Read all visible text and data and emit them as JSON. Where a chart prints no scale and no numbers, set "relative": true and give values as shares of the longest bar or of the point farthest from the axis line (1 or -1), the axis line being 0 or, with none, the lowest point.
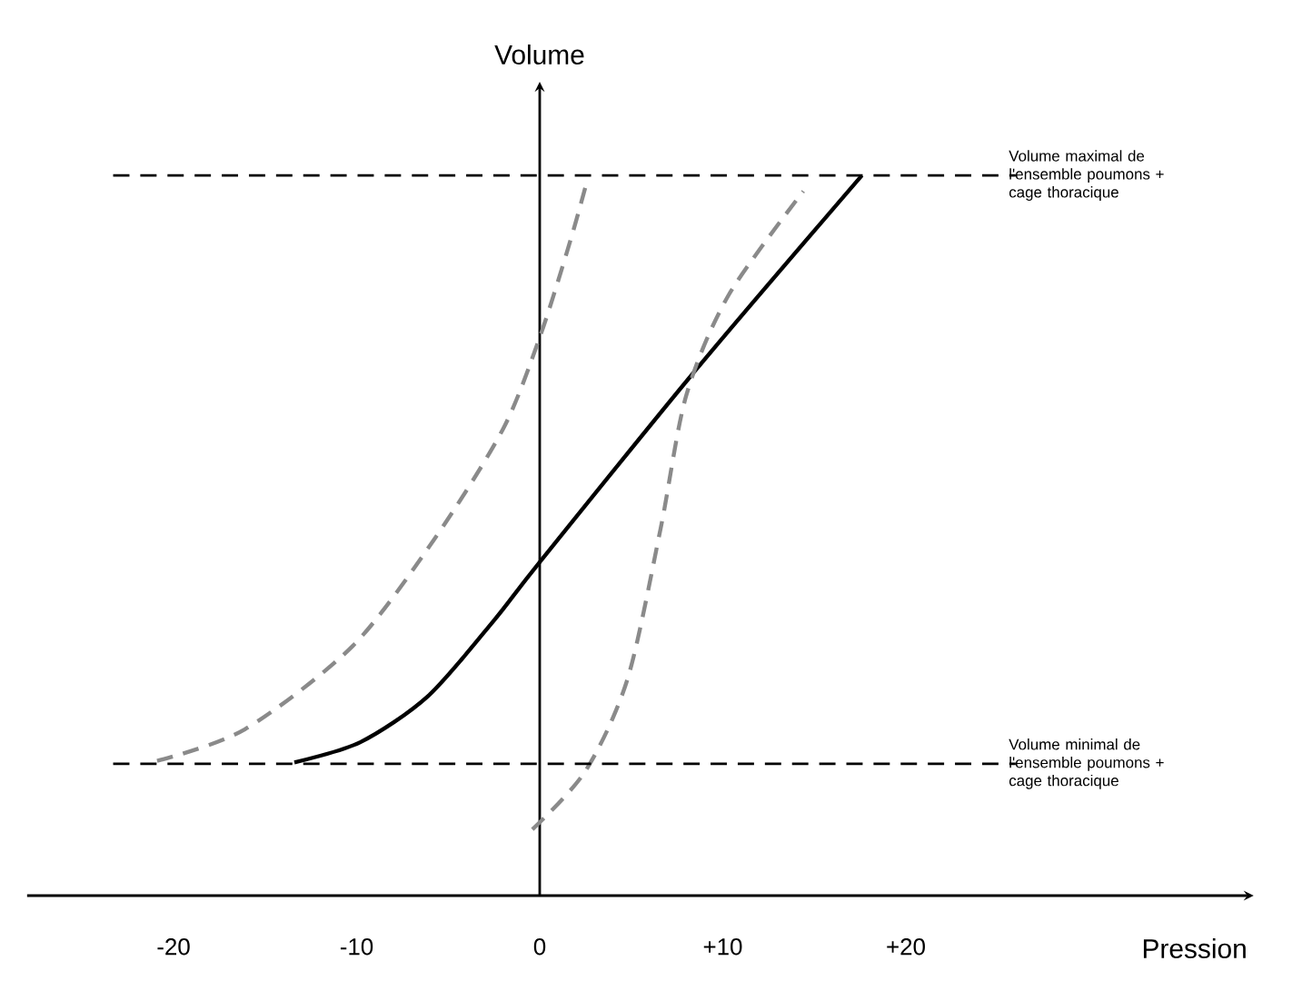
{
  "chart_data": {
    "type": "line",
    "xlabel": "Pression",
    "ylabel": "Volume",
    "relative": true,
    "xlim": [
      -28,
      39
    ],
    "xticks": [
      -20,
      -10,
      0,
      {
        "value": 10,
        "label": "+10"
      },
      {
        "value": 20,
        "label": "+20"
      }
    ],
    "series": [
      {
        "color": "#8a8a8a",
        "line_style": "dashed",
        "x": [
          -20.9,
          -16.1,
          -10.2,
          -5.7,
          -2.0,
          0,
          1.6,
          2.5
        ],
        "values": [
          0.187,
          0.231,
          0.347,
          0.497,
          0.648,
          0.775,
          0.903,
          0.984
        ]
      },
      {
        "color": "#000000",
        "line_style": "solid",
        "x": [
          -13.4,
          -9.8,
          -6.1,
          -2.5,
          0,
          8.5,
          17.6
        ],
        "values": [
          0.185,
          0.213,
          0.277,
          0.382,
          0.463,
          0.729,
          1.0
        ]
      },
      {
        "color": "#8a8a8a",
        "line_style": "dashed",
        "x": [
          -0.4,
          2.5,
          4.8,
          6.6,
          8.0,
          10.3,
          14.4
        ],
        "values": [
          0.092,
          0.173,
          0.301,
          0.509,
          0.694,
          0.833,
          0.978
        ]
      }
    ],
    "ref_lines": [
      {
        "axis": "y",
        "value": 1.0,
        "label": "Volume maximal de l'ensemble poumons + cage thoracique",
        "color": "#000000",
        "line_style": "dashed"
      },
      {
        "axis": "y",
        "value": 0.183,
        "label": "Volume minimal de l'ensemble poumons + cage thoracique",
        "color": "#000000",
        "line_style": "dashed"
      }
    ]
  }
}
